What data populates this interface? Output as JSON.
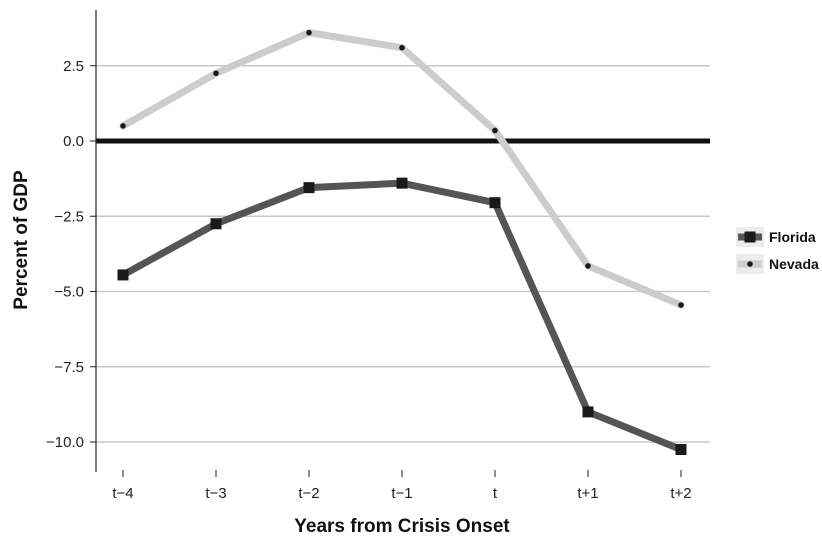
{
  "chart_data": {
    "type": "line",
    "title": "",
    "xlabel": "Years from Crisis Onset",
    "ylabel": "Percent of GDP",
    "categories": [
      "t−4",
      "t−3",
      "t−2",
      "t−1",
      "t",
      "t+1",
      "t+2"
    ],
    "yticks": [
      2.5,
      0.0,
      -2.5,
      -5.0,
      -7.5,
      -10.0
    ],
    "ytick_labels": [
      "2.5",
      "0.0",
      "−2.5",
      "−5.0",
      "−7.5",
      "−10.0"
    ],
    "ylim": [
      -10.8,
      4.3
    ],
    "grid": "horizontal",
    "reference_line": 0,
    "legend_position": "right",
    "series": [
      {
        "name": "Florida",
        "values": [
          -4.45,
          -2.75,
          -1.55,
          -1.4,
          -2.05,
          -9.0,
          -10.25
        ],
        "color": "#555555",
        "marker": "square"
      },
      {
        "name": "Nevada",
        "values": [
          0.5,
          2.25,
          3.6,
          3.1,
          0.35,
          -4.15,
          -5.45
        ],
        "color": "#cccccc",
        "marker": "dot"
      }
    ]
  }
}
